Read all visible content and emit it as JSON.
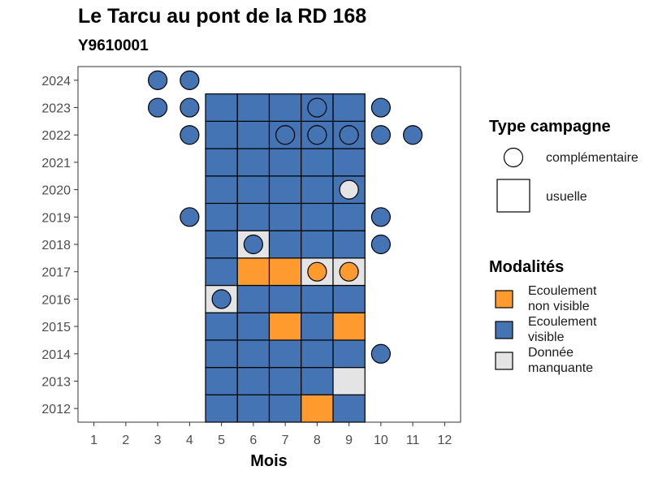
{
  "chart_data": {
    "type": "heatmap",
    "title": "Le Tarcu au pont de la RD 168",
    "subtitle": "Y9610001",
    "xlabel": "Mois",
    "ylabel": "",
    "x_ticks": [
      1,
      2,
      3,
      4,
      5,
      6,
      7,
      8,
      9,
      10,
      11,
      12
    ],
    "y_ticks": [
      2012,
      2013,
      2014,
      2015,
      2016,
      2017,
      2018,
      2019,
      2020,
      2021,
      2022,
      2023,
      2024
    ],
    "xlim": [
      0.5,
      12.5
    ],
    "ylim": [
      2011.5,
      2024.5
    ],
    "grid": false,
    "legend_position": "right",
    "colors": {
      "ecoulement_non_visible": "#FF9B2E",
      "ecoulement_visible": "#4574B4",
      "donnee_manquante": "#E4E4E4"
    },
    "legend_type": {
      "title": "Type campagne",
      "items": [
        {
          "key": "complementaire",
          "label": "complémentaire",
          "shape": "circle"
        },
        {
          "key": "usuelle",
          "label": "usuelle",
          "shape": "square"
        }
      ]
    },
    "legend_modalites": {
      "title": "Modalités",
      "items": [
        {
          "key": "ecoulement_non_visible",
          "lines": [
            "Ecoulement",
            "non visible"
          ]
        },
        {
          "key": "ecoulement_visible",
          "lines": [
            "Ecoulement",
            "visible"
          ]
        },
        {
          "key": "donnee_manquante",
          "lines": [
            "Donnée",
            "manquante"
          ]
        }
      ]
    },
    "usuelle": [
      {
        "year": 2012,
        "values": [
          "ecoulement_visible",
          "ecoulement_visible",
          "ecoulement_visible",
          "ecoulement_non_visible",
          "ecoulement_visible"
        ]
      },
      {
        "year": 2013,
        "values": [
          "ecoulement_visible",
          "ecoulement_visible",
          "ecoulement_visible",
          "ecoulement_visible",
          "donnee_manquante"
        ]
      },
      {
        "year": 2014,
        "values": [
          "ecoulement_visible",
          "ecoulement_visible",
          "ecoulement_visible",
          "ecoulement_visible",
          "ecoulement_visible"
        ]
      },
      {
        "year": 2015,
        "values": [
          "ecoulement_visible",
          "ecoulement_visible",
          "ecoulement_non_visible",
          "ecoulement_visible",
          "ecoulement_non_visible"
        ]
      },
      {
        "year": 2016,
        "values": [
          "donnee_manquante",
          "ecoulement_visible",
          "ecoulement_visible",
          "ecoulement_visible",
          "ecoulement_visible"
        ]
      },
      {
        "year": 2017,
        "values": [
          "ecoulement_visible",
          "ecoulement_non_visible",
          "ecoulement_non_visible",
          "donnee_manquante",
          "donnee_manquante"
        ]
      },
      {
        "year": 2018,
        "values": [
          "ecoulement_visible",
          "donnee_manquante",
          "ecoulement_visible",
          "ecoulement_visible",
          "ecoulement_visible"
        ]
      },
      {
        "year": 2019,
        "values": [
          "ecoulement_visible",
          "ecoulement_visible",
          "ecoulement_visible",
          "ecoulement_visible",
          "ecoulement_visible"
        ]
      },
      {
        "year": 2020,
        "values": [
          "ecoulement_visible",
          "ecoulement_visible",
          "ecoulement_visible",
          "ecoulement_visible",
          "ecoulement_visible"
        ]
      },
      {
        "year": 2021,
        "values": [
          "ecoulement_visible",
          "ecoulement_visible",
          "ecoulement_visible",
          "ecoulement_visible",
          "ecoulement_visible"
        ]
      },
      {
        "year": 2022,
        "values": [
          "ecoulement_visible",
          "ecoulement_visible",
          "ecoulement_visible",
          "ecoulement_visible",
          "ecoulement_visible"
        ]
      },
      {
        "year": 2023,
        "values": [
          "ecoulement_visible",
          "ecoulement_visible",
          "ecoulement_visible",
          "ecoulement_visible",
          "ecoulement_visible"
        ]
      }
    ],
    "usuelle_months": [
      5,
      6,
      7,
      8,
      9
    ],
    "complementaire": [
      {
        "year": 2024,
        "month": 3,
        "value": "ecoulement_visible"
      },
      {
        "year": 2024,
        "month": 4,
        "value": "ecoulement_visible"
      },
      {
        "year": 2023,
        "month": 3,
        "value": "ecoulement_visible"
      },
      {
        "year": 2023,
        "month": 4,
        "value": "ecoulement_visible"
      },
      {
        "year": 2023,
        "month": 8,
        "value": "ecoulement_visible"
      },
      {
        "year": 2023,
        "month": 10,
        "value": "ecoulement_visible"
      },
      {
        "year": 2022,
        "month": 4,
        "value": "ecoulement_visible"
      },
      {
        "year": 2022,
        "month": 7,
        "value": "ecoulement_visible"
      },
      {
        "year": 2022,
        "month": 8,
        "value": "ecoulement_visible"
      },
      {
        "year": 2022,
        "month": 9,
        "value": "ecoulement_visible"
      },
      {
        "year": 2022,
        "month": 10,
        "value": "ecoulement_visible"
      },
      {
        "year": 2022,
        "month": 11,
        "value": "ecoulement_visible"
      },
      {
        "year": 2020,
        "month": 9,
        "value": "donnee_manquante"
      },
      {
        "year": 2019,
        "month": 4,
        "value": "ecoulement_visible"
      },
      {
        "year": 2019,
        "month": 10,
        "value": "ecoulement_visible"
      },
      {
        "year": 2018,
        "month": 6,
        "value": "ecoulement_visible"
      },
      {
        "year": 2018,
        "month": 10,
        "value": "ecoulement_visible"
      },
      {
        "year": 2017,
        "month": 8,
        "value": "ecoulement_non_visible"
      },
      {
        "year": 2017,
        "month": 9,
        "value": "ecoulement_non_visible"
      },
      {
        "year": 2016,
        "month": 5,
        "value": "ecoulement_visible"
      },
      {
        "year": 2014,
        "month": 10,
        "value": "ecoulement_visible"
      }
    ]
  }
}
